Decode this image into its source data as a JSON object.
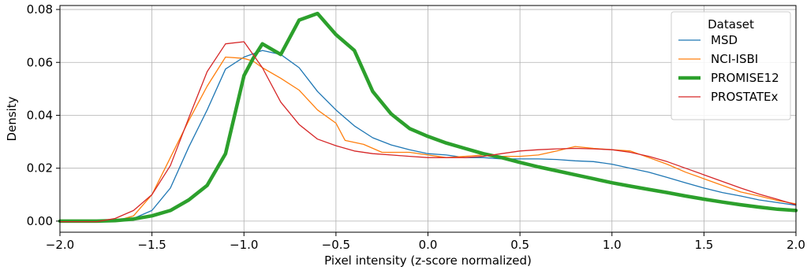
{
  "chart_data": {
    "type": "line",
    "title": "",
    "xlabel": "Pixel intensity (z-score normalized)",
    "ylabel": "Density",
    "xlim": [
      -2.0,
      2.0
    ],
    "ylim": [
      -0.0042,
      0.0815
    ],
    "x_ticks": [
      -2.0,
      -1.5,
      -1.0,
      -0.5,
      0.0,
      0.5,
      1.0,
      1.5,
      2.0
    ],
    "x_tick_labels": [
      "−2.0",
      "−1.5",
      "−1.0",
      "−0.5",
      "0.0",
      "0.5",
      "1.0",
      "1.5",
      "2.0"
    ],
    "y_ticks": [
      0.0,
      0.02,
      0.04,
      0.06,
      0.08
    ],
    "y_tick_labels": [
      "0.00",
      "0.02",
      "0.04",
      "0.06",
      "0.08"
    ],
    "grid": true,
    "legend": {
      "title": "Dataset",
      "placement": "top-right"
    },
    "series": [
      {
        "name": "MSD",
        "color": "#1f77b4",
        "width": "thin",
        "points": [
          [
            -2.0,
            0.0
          ],
          [
            -1.8,
            0.0
          ],
          [
            -1.65,
            0.0005
          ],
          [
            -1.6,
            0.001
          ],
          [
            -1.5,
            0.004
          ],
          [
            -1.4,
            0.0125
          ],
          [
            -1.3,
            0.028
          ],
          [
            -1.2,
            0.042
          ],
          [
            -1.1,
            0.0575
          ],
          [
            -1.0,
            0.062
          ],
          [
            -0.9,
            0.0645
          ],
          [
            -0.8,
            0.063
          ],
          [
            -0.7,
            0.058
          ],
          [
            -0.6,
            0.049
          ],
          [
            -0.5,
            0.042
          ],
          [
            -0.4,
            0.036
          ],
          [
            -0.3,
            0.0315
          ],
          [
            -0.2,
            0.0288
          ],
          [
            -0.1,
            0.027
          ],
          [
            0.0,
            0.0255
          ],
          [
            0.1,
            0.025
          ],
          [
            0.2,
            0.024
          ],
          [
            0.3,
            0.024
          ],
          [
            0.4,
            0.0235
          ],
          [
            0.5,
            0.0235
          ],
          [
            0.6,
            0.0235
          ],
          [
            0.7,
            0.0233
          ],
          [
            0.8,
            0.0228
          ],
          [
            0.9,
            0.0225
          ],
          [
            1.0,
            0.0215
          ],
          [
            1.1,
            0.02
          ],
          [
            1.2,
            0.0185
          ],
          [
            1.3,
            0.0165
          ],
          [
            1.4,
            0.0145
          ],
          [
            1.5,
            0.0125
          ],
          [
            1.6,
            0.0108
          ],
          [
            1.7,
            0.0095
          ],
          [
            1.8,
            0.008
          ],
          [
            1.9,
            0.007
          ],
          [
            2.0,
            0.006
          ]
        ]
      },
      {
        "name": "NCI-ISBI",
        "color": "#ff7f0e",
        "width": "thin",
        "points": [
          [
            -2.0,
            -0.0002
          ],
          [
            -1.8,
            -0.0002
          ],
          [
            -1.7,
            0.0
          ],
          [
            -1.6,
            0.002
          ],
          [
            -1.5,
            0.01
          ],
          [
            -1.4,
            0.024
          ],
          [
            -1.3,
            0.038
          ],
          [
            -1.2,
            0.051
          ],
          [
            -1.1,
            0.062
          ],
          [
            -1.0,
            0.0615
          ],
          [
            -0.95,
            0.0605
          ],
          [
            -0.9,
            0.058
          ],
          [
            -0.8,
            0.054
          ],
          [
            -0.7,
            0.0495
          ],
          [
            -0.6,
            0.042
          ],
          [
            -0.5,
            0.037
          ],
          [
            -0.45,
            0.0305
          ],
          [
            -0.35,
            0.029
          ],
          [
            -0.25,
            0.026
          ],
          [
            -0.1,
            0.026
          ],
          [
            0.0,
            0.025
          ],
          [
            0.1,
            0.024
          ],
          [
            0.2,
            0.0245
          ],
          [
            0.3,
            0.025
          ],
          [
            0.4,
            0.0245
          ],
          [
            0.5,
            0.0245
          ],
          [
            0.6,
            0.025
          ],
          [
            0.7,
            0.0265
          ],
          [
            0.8,
            0.0282
          ],
          [
            0.9,
            0.0275
          ],
          [
            1.0,
            0.027
          ],
          [
            1.1,
            0.0265
          ],
          [
            1.2,
            0.024
          ],
          [
            1.3,
            0.0215
          ],
          [
            1.4,
            0.0185
          ],
          [
            1.5,
            0.016
          ],
          [
            1.6,
            0.0135
          ],
          [
            1.7,
            0.011
          ],
          [
            1.8,
            0.0095
          ],
          [
            1.9,
            0.0078
          ],
          [
            2.0,
            0.0065
          ]
        ]
      },
      {
        "name": "PROMISE12",
        "color": "#2ca02c",
        "width": "thick",
        "points": [
          [
            -2.0,
            0.0
          ],
          [
            -1.8,
            0.0
          ],
          [
            -1.7,
            0.0002
          ],
          [
            -1.6,
            0.0008
          ],
          [
            -1.5,
            0.002
          ],
          [
            -1.4,
            0.004
          ],
          [
            -1.3,
            0.008
          ],
          [
            -1.2,
            0.0135
          ],
          [
            -1.1,
            0.0255
          ],
          [
            -1.0,
            0.055
          ],
          [
            -0.95,
            0.0615
          ],
          [
            -0.9,
            0.067
          ],
          [
            -0.85,
            0.065
          ],
          [
            -0.8,
            0.063
          ],
          [
            -0.7,
            0.076
          ],
          [
            -0.6,
            0.0785
          ],
          [
            -0.5,
            0.0705
          ],
          [
            -0.4,
            0.0645
          ],
          [
            -0.3,
            0.049
          ],
          [
            -0.2,
            0.0405
          ],
          [
            -0.1,
            0.035
          ],
          [
            0.0,
            0.032
          ],
          [
            0.1,
            0.0295
          ],
          [
            0.2,
            0.0275
          ],
          [
            0.3,
            0.0255
          ],
          [
            0.4,
            0.024
          ],
          [
            0.5,
            0.0222
          ],
          [
            0.6,
            0.0205
          ],
          [
            0.7,
            0.019
          ],
          [
            0.8,
            0.0175
          ],
          [
            0.9,
            0.016
          ],
          [
            1.0,
            0.0145
          ],
          [
            1.1,
            0.0132
          ],
          [
            1.2,
            0.012
          ],
          [
            1.3,
            0.0108
          ],
          [
            1.4,
            0.0095
          ],
          [
            1.5,
            0.0083
          ],
          [
            1.6,
            0.0072
          ],
          [
            1.7,
            0.0062
          ],
          [
            1.8,
            0.0053
          ],
          [
            1.9,
            0.0045
          ],
          [
            2.0,
            0.004
          ]
        ]
      },
      {
        "name": "PROSTATEx",
        "color": "#d62728",
        "width": "thin",
        "points": [
          [
            -2.0,
            -0.0002
          ],
          [
            -1.8,
            -0.0002
          ],
          [
            -1.7,
            0.001
          ],
          [
            -1.6,
            0.004
          ],
          [
            -1.5,
            0.01
          ],
          [
            -1.4,
            0.021
          ],
          [
            -1.3,
            0.039
          ],
          [
            -1.2,
            0.0565
          ],
          [
            -1.1,
            0.067
          ],
          [
            -1.0,
            0.0678
          ],
          [
            -0.9,
            0.058
          ],
          [
            -0.8,
            0.045
          ],
          [
            -0.7,
            0.0365
          ],
          [
            -0.6,
            0.031
          ],
          [
            -0.5,
            0.0285
          ],
          [
            -0.4,
            0.0265
          ],
          [
            -0.3,
            0.0255
          ],
          [
            -0.2,
            0.025
          ],
          [
            -0.1,
            0.0245
          ],
          [
            0.0,
            0.024
          ],
          [
            0.1,
            0.024
          ],
          [
            0.2,
            0.024
          ],
          [
            0.3,
            0.0245
          ],
          [
            0.4,
            0.0255
          ],
          [
            0.5,
            0.0265
          ],
          [
            0.6,
            0.027
          ],
          [
            0.7,
            0.0273
          ],
          [
            0.8,
            0.0275
          ],
          [
            0.9,
            0.0273
          ],
          [
            1.0,
            0.027
          ],
          [
            1.1,
            0.026
          ],
          [
            1.2,
            0.0245
          ],
          [
            1.3,
            0.0225
          ],
          [
            1.4,
            0.02
          ],
          [
            1.5,
            0.0175
          ],
          [
            1.6,
            0.015
          ],
          [
            1.7,
            0.0125
          ],
          [
            1.8,
            0.0102
          ],
          [
            1.9,
            0.0082
          ],
          [
            2.0,
            0.0062
          ]
        ]
      }
    ]
  }
}
